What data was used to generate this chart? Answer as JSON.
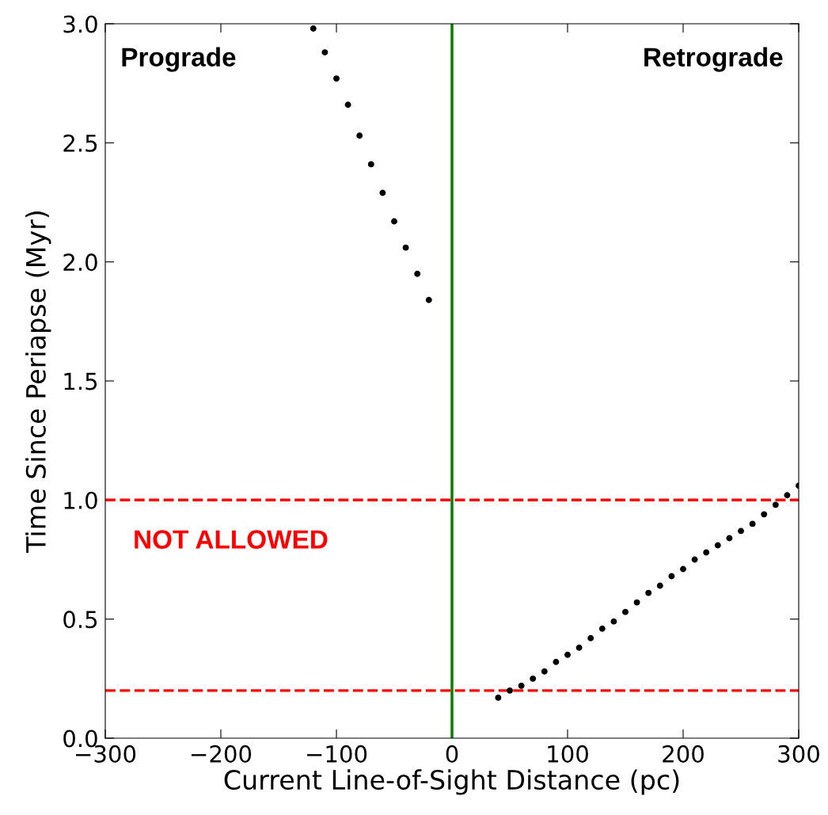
{
  "chart_data": {
    "type": "scatter",
    "xlabel": "Current Line-of-Sight Distance (pc)",
    "ylabel": "Time Since Periapse (Myr)",
    "xlim": [
      -300,
      300
    ],
    "ylim": [
      0,
      3
    ],
    "xticks": [
      {
        "value": -300,
        "label": "−300"
      },
      {
        "value": -200,
        "label": "−200"
      },
      {
        "value": -100,
        "label": "−100"
      },
      0,
      100,
      200,
      300
    ],
    "yticks": [
      {
        "value": 0,
        "label": "0.0"
      },
      0.5,
      {
        "value": 1,
        "label": "1.0"
      },
      1.5,
      {
        "value": 2,
        "label": "2.0"
      },
      2.5,
      {
        "value": 3,
        "label": "3.0"
      }
    ],
    "grid": false,
    "legend": false,
    "marker": "circle",
    "series": [
      {
        "color": "#000000",
        "x": [
          -120,
          -110,
          -100,
          -90,
          -80,
          -70,
          -60,
          -50,
          -40,
          -30,
          -20
        ],
        "values": [
          2.98,
          2.88,
          2.77,
          2.66,
          2.53,
          2.41,
          2.29,
          2.17,
          2.06,
          1.95,
          1.84
        ]
      },
      {
        "color": "#000000",
        "x": [
          40,
          50,
          60,
          70,
          80,
          90,
          100,
          110,
          120,
          130,
          140,
          150,
          160,
          170,
          180,
          190,
          200,
          210,
          220,
          230,
          240,
          250,
          260,
          270,
          280,
          290,
          300
        ],
        "values": [
          0.17,
          0.2,
          0.22,
          0.25,
          0.28,
          0.32,
          0.35,
          0.38,
          0.42,
          0.46,
          0.49,
          0.53,
          0.57,
          0.61,
          0.64,
          0.68,
          0.71,
          0.75,
          0.78,
          0.81,
          0.84,
          0.87,
          0.9,
          0.94,
          0.98,
          1.02,
          1.06
        ]
      }
    ],
    "ref_lines": [
      {
        "axis": "x",
        "value": 0,
        "color": "#008000",
        "line_style": "solid"
      },
      {
        "axis": "y",
        "value": 1.0,
        "color": "#ff0000",
        "line_style": "dashed"
      },
      {
        "axis": "y",
        "value": 0.2,
        "color": "#ff0000",
        "line_style": "dashed"
      }
    ],
    "annotations": [
      "Prograde",
      "Retrograde",
      "NOT ALLOWED"
    ]
  }
}
